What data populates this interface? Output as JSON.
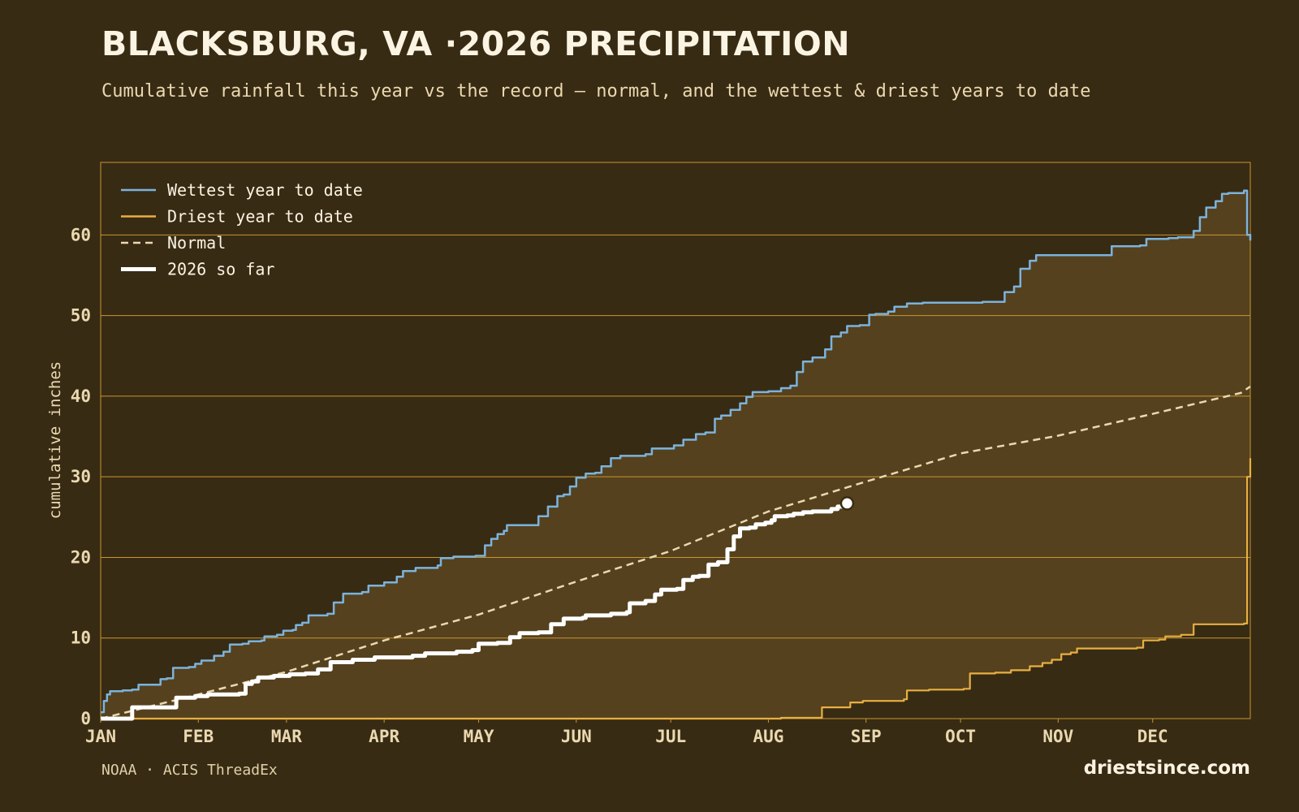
{
  "header": {
    "title": "BLACKSBURG, VA ·2026 PRECIPITATION",
    "subtitle": "Cumulative rainfall this year vs the record — normal, and the wettest & driest years to date"
  },
  "footer": {
    "source": "NOAA · ACIS ThreadEx",
    "brand": "driestsince.com"
  },
  "colors": {
    "background": "#382b14",
    "band_fill": "#55411e",
    "grid": "#c9962e",
    "wettest": "#7cb3dc",
    "driest": "#e8b041",
    "normal": "#ead9b0",
    "current": "#ffffff"
  },
  "chart_data": {
    "type": "line",
    "ylabel": "cumulative inches",
    "xlabel": "",
    "ylim": [
      0,
      69
    ],
    "yticks": [
      0,
      10,
      20,
      30,
      40,
      50,
      60
    ],
    "x_unit": "day of year",
    "xlim": [
      1,
      366
    ],
    "xticks": [
      {
        "label": "JAN",
        "day": 1
      },
      {
        "label": "FEB",
        "day": 32
      },
      {
        "label": "MAR",
        "day": 60
      },
      {
        "label": "APR",
        "day": 91
      },
      {
        "label": "MAY",
        "day": 121
      },
      {
        "label": "JUN",
        "day": 152
      },
      {
        "label": "JUL",
        "day": 182
      },
      {
        "label": "AUG",
        "day": 213
      },
      {
        "label": "SEP",
        "day": 244
      },
      {
        "label": "OCT",
        "day": 274
      },
      {
        "label": "NOV",
        "day": 305
      },
      {
        "label": "DEC",
        "day": 335
      }
    ],
    "grid": true,
    "legend_position": "top-left",
    "series": [
      {
        "name": "Wettest year to date",
        "style": "solid",
        "points": [
          [
            1,
            0.8
          ],
          [
            2,
            2.2
          ],
          [
            3,
            3.0
          ],
          [
            4,
            3.4
          ],
          [
            8,
            3.5
          ],
          [
            11,
            3.6
          ],
          [
            13,
            4.2
          ],
          [
            19,
            4.2
          ],
          [
            20,
            4.9
          ],
          [
            22,
            5.0
          ],
          [
            24,
            6.3
          ],
          [
            29,
            6.4
          ],
          [
            31,
            6.8
          ],
          [
            33,
            7.2
          ],
          [
            37,
            7.8
          ],
          [
            40,
            8.3
          ],
          [
            42,
            9.2
          ],
          [
            46,
            9.3
          ],
          [
            48,
            9.6
          ],
          [
            52,
            9.7
          ],
          [
            53,
            10.2
          ],
          [
            57,
            10.4
          ],
          [
            59,
            10.9
          ],
          [
            62,
            11.0
          ],
          [
            63,
            11.6
          ],
          [
            65,
            11.9
          ],
          [
            67,
            12.8
          ],
          [
            73,
            13.0
          ],
          [
            75,
            14.4
          ],
          [
            78,
            15.5
          ],
          [
            84,
            15.7
          ],
          [
            86,
            16.5
          ],
          [
            91,
            16.9
          ],
          [
            95,
            17.6
          ],
          [
            97,
            18.3
          ],
          [
            101,
            18.7
          ],
          [
            108,
            19.0
          ],
          [
            109,
            19.9
          ],
          [
            113,
            20.1
          ],
          [
            120,
            20.2
          ],
          [
            123,
            21.5
          ],
          [
            125,
            22.3
          ],
          [
            127,
            22.9
          ],
          [
            129,
            23.3
          ],
          [
            130,
            24.0
          ],
          [
            138,
            24.0
          ],
          [
            140,
            25.1
          ],
          [
            143,
            26.3
          ],
          [
            146,
            27.6
          ],
          [
            148,
            27.8
          ],
          [
            150,
            28.8
          ],
          [
            152,
            29.9
          ],
          [
            155,
            30.4
          ],
          [
            158,
            30.5
          ],
          [
            160,
            31.3
          ],
          [
            163,
            32.3
          ],
          [
            166,
            32.6
          ],
          [
            174,
            32.8
          ],
          [
            176,
            33.5
          ],
          [
            183,
            33.9
          ],
          [
            186,
            34.6
          ],
          [
            190,
            35.3
          ],
          [
            193,
            35.5
          ],
          [
            196,
            37.2
          ],
          [
            198,
            37.6
          ],
          [
            201,
            38.3
          ],
          [
            204,
            39.1
          ],
          [
            206,
            39.9
          ],
          [
            208,
            40.5
          ],
          [
            213,
            40.6
          ],
          [
            216,
            40.6
          ],
          [
            217,
            41.0
          ],
          [
            220,
            41.3
          ],
          [
            222,
            43.0
          ],
          [
            224,
            44.3
          ],
          [
            227,
            44.8
          ],
          [
            231,
            45.8
          ],
          [
            233,
            47.4
          ],
          [
            236,
            47.9
          ],
          [
            238,
            48.7
          ],
          [
            242,
            48.8
          ],
          [
            245,
            50.1
          ],
          [
            247,
            50.2
          ],
          [
            251,
            50.5
          ],
          [
            253,
            51.1
          ],
          [
            257,
            51.5
          ],
          [
            262,
            51.6
          ],
          [
            277,
            51.6
          ],
          [
            281,
            51.7
          ],
          [
            288,
            52.9
          ],
          [
            291,
            53.6
          ],
          [
            293,
            55.8
          ],
          [
            296,
            56.8
          ],
          [
            298,
            57.5
          ],
          [
            320,
            57.5
          ],
          [
            322,
            58.6
          ],
          [
            331,
            58.7
          ],
          [
            333,
            59.5
          ],
          [
            340,
            59.6
          ],
          [
            343,
            59.7
          ],
          [
            348,
            60.5
          ],
          [
            350,
            62.2
          ],
          [
            352,
            63.4
          ],
          [
            355,
            64.2
          ],
          [
            357,
            65.1
          ],
          [
            359,
            65.2
          ],
          [
            364,
            65.5
          ],
          [
            365,
            60.0
          ],
          [
            366,
            59.3
          ]
        ]
      },
      {
        "name": "Driest year to date",
        "style": "solid",
        "points": [
          [
            1,
            0
          ],
          [
            216,
            0
          ],
          [
            217,
            0.1
          ],
          [
            229,
            0.1
          ],
          [
            230,
            1.4
          ],
          [
            238,
            1.4
          ],
          [
            239,
            2.0
          ],
          [
            243,
            2.2
          ],
          [
            256,
            2.4
          ],
          [
            257,
            3.5
          ],
          [
            264,
            3.6
          ],
          [
            275,
            3.7
          ],
          [
            277,
            5.6
          ],
          [
            285,
            5.7
          ],
          [
            290,
            6.0
          ],
          [
            296,
            6.5
          ],
          [
            300,
            6.9
          ],
          [
            303,
            7.3
          ],
          [
            306,
            8.0
          ],
          [
            309,
            8.2
          ],
          [
            311,
            8.7
          ],
          [
            330,
            8.8
          ],
          [
            332,
            9.7
          ],
          [
            337,
            9.8
          ],
          [
            339,
            10.2
          ],
          [
            344,
            10.4
          ],
          [
            348,
            11.7
          ],
          [
            364,
            11.8
          ],
          [
            365,
            30.0
          ],
          [
            366,
            32.3
          ]
        ]
      },
      {
        "name": "Normal",
        "style": "dashed",
        "points": [
          [
            1,
            0
          ],
          [
            30,
            2.8
          ],
          [
            60,
            5.8
          ],
          [
            91,
            9.7
          ],
          [
            121,
            12.9
          ],
          [
            152,
            17.0
          ],
          [
            182,
            20.8
          ],
          [
            213,
            25.7
          ],
          [
            244,
            29.4
          ],
          [
            262,
            31.5
          ],
          [
            274,
            32.9
          ],
          [
            305,
            35.1
          ],
          [
            335,
            37.8
          ],
          [
            363,
            40.4
          ],
          [
            366,
            41.2
          ]
        ]
      },
      {
        "name": "2026 so far",
        "style": "bold",
        "points": [
          [
            1,
            0
          ],
          [
            10,
            0
          ],
          [
            11,
            1.4
          ],
          [
            23,
            1.4
          ],
          [
            25,
            2.6
          ],
          [
            31,
            2.8
          ],
          [
            35,
            3.0
          ],
          [
            45,
            3.1
          ],
          [
            47,
            4.3
          ],
          [
            49,
            4.6
          ],
          [
            51,
            5.1
          ],
          [
            56,
            5.3
          ],
          [
            61,
            5.5
          ],
          [
            66,
            5.6
          ],
          [
            70,
            6.1
          ],
          [
            74,
            7.0
          ],
          [
            81,
            7.3
          ],
          [
            88,
            7.6
          ],
          [
            100,
            7.8
          ],
          [
            104,
            8.1
          ],
          [
            114,
            8.3
          ],
          [
            119,
            8.5
          ],
          [
            121,
            9.3
          ],
          [
            127,
            9.4
          ],
          [
            131,
            10.1
          ],
          [
            134,
            10.6
          ],
          [
            140,
            10.7
          ],
          [
            144,
            11.7
          ],
          [
            148,
            12.4
          ],
          [
            154,
            12.5
          ],
          [
            155,
            12.8
          ],
          [
            161,
            12.8
          ],
          [
            163,
            13.0
          ],
          [
            168,
            13.2
          ],
          [
            169,
            14.3
          ],
          [
            174,
            14.6
          ],
          [
            177,
            15.4
          ],
          [
            179,
            16.0
          ],
          [
            184,
            16.1
          ],
          [
            186,
            17.2
          ],
          [
            189,
            17.6
          ],
          [
            191,
            17.7
          ],
          [
            194,
            19.1
          ],
          [
            197,
            19.4
          ],
          [
            200,
            21.0
          ],
          [
            202,
            22.6
          ],
          [
            204,
            23.6
          ],
          [
            207,
            23.7
          ],
          [
            209,
            24.1
          ],
          [
            212,
            24.3
          ],
          [
            214,
            24.6
          ],
          [
            215,
            25.1
          ],
          [
            219,
            25.2
          ],
          [
            221,
            25.4
          ],
          [
            224,
            25.6
          ],
          [
            227,
            25.7
          ],
          [
            233,
            26.0
          ],
          [
            235,
            26.3
          ],
          [
            238,
            26.7
          ]
        ]
      }
    ],
    "current_marker": {
      "series": "2026 so far",
      "day": 238,
      "value": 26.7
    }
  }
}
